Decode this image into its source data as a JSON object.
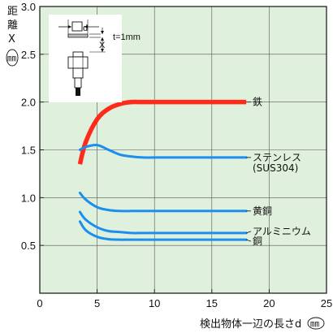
{
  "chart_data": {
    "type": "line",
    "xlabel": "検出物体一辺の長さd",
    "xunit": "㎜",
    "ylabel_chars": [
      "距",
      "離",
      "X"
    ],
    "yunit": "㎜",
    "xlim": [
      0,
      25
    ],
    "ylim": [
      0,
      3.0
    ],
    "xticks": [
      0,
      5,
      10,
      15,
      20,
      25
    ],
    "yticks": [
      0.5,
      1.0,
      1.5,
      2.0,
      2.5,
      3.0
    ],
    "xtick_labels": [
      "0",
      "5",
      "10",
      "15",
      "20",
      "25"
    ],
    "ytick_labels": [
      "0.5",
      "1.0",
      "1.5",
      "2.0",
      "2.5",
      "3.0"
    ],
    "grid": true,
    "background": "#dff0dc",
    "grid_color": "#555555",
    "series": [
      {
        "name": "鉄",
        "color": "#ff2a1a",
        "x": [
          3.5,
          4,
          5,
          6,
          7,
          8,
          9,
          10,
          12,
          15,
          18
        ],
        "y": [
          1.35,
          1.58,
          1.82,
          1.93,
          1.98,
          2.0,
          2.0,
          2.0,
          2.0,
          2.0,
          2.0
        ]
      },
      {
        "name": "ステンレス",
        "name2": "(SUS304)",
        "color": "#1a8ff0",
        "x": [
          3.5,
          4,
          5,
          6,
          7,
          8,
          9,
          10,
          12,
          15,
          18
        ],
        "y": [
          1.5,
          1.53,
          1.55,
          1.5,
          1.45,
          1.43,
          1.42,
          1.42,
          1.42,
          1.42,
          1.42
        ]
      },
      {
        "name": "黄銅",
        "color": "#1a8ff0",
        "x": [
          3.5,
          4,
          5,
          6,
          7,
          8,
          9,
          10,
          12,
          15,
          18
        ],
        "y": [
          1.05,
          0.98,
          0.9,
          0.87,
          0.86,
          0.86,
          0.86,
          0.86,
          0.86,
          0.86,
          0.86
        ]
      },
      {
        "name": "アルミニウム",
        "color": "#1a8ff0",
        "x": [
          3.5,
          4,
          5,
          6,
          7,
          8,
          9,
          10,
          12,
          15,
          18
        ],
        "y": [
          0.85,
          0.77,
          0.69,
          0.65,
          0.64,
          0.63,
          0.63,
          0.63,
          0.63,
          0.63,
          0.63
        ]
      },
      {
        "name": "銅",
        "color": "#1a8ff0",
        "x": [
          3.5,
          4,
          5,
          6,
          7,
          8,
          9,
          10,
          12,
          15,
          18
        ],
        "y": [
          0.75,
          0.66,
          0.59,
          0.565,
          0.56,
          0.56,
          0.56,
          0.56,
          0.56,
          0.56,
          0.56
        ]
      }
    ]
  },
  "inset": {
    "d_label": "d",
    "t_label": "t=1mm",
    "x_label": "X"
  }
}
